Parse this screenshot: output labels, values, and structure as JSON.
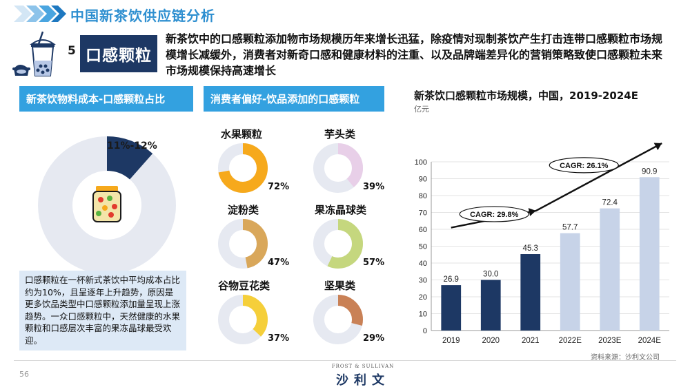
{
  "header": {
    "title": "中国新茶饮供应链分析"
  },
  "section": {
    "number": "5",
    "title": "口感颗粒",
    "description": "新茶饮中的口感颗粒添加物市场规模历年来增长迅猛，除疫情对现制茶饮产生打击连带口感颗粒市场规模增长减缓外，消费者对新奇口感和健康材料的注重、以及品牌端差异化的营销策略致使口感颗粒未来市场规模保持高速增长"
  },
  "panel_left": {
    "header": "新茶饮物料成本-口感颗粒占比",
    "share_label": "11%-12%",
    "share_fraction": 0.115,
    "note": "口感颗粒在一杯新式茶饮中平均成本占比约为10%，且呈逐年上升趋势，原因是更多饮品类型中口感颗粒添加量呈现上涨趋势。一众口感颗粒中，天然健康的水果颗粒和口感层次丰富的果冻晶球最受欢迎。"
  },
  "panel_middle": {
    "header": "消费者偏好-饮品添加的口感颗粒",
    "items": [
      {
        "name": "水果颗粒",
        "pct_label": "72%",
        "value": 0.72,
        "color": "#f6a91c"
      },
      {
        "name": "芋头类",
        "pct_label": "39%",
        "value": 0.39,
        "color": "#e8cfe8"
      },
      {
        "name": "淀粉类",
        "pct_label": "47%",
        "value": 0.47,
        "color": "#d9a75a"
      },
      {
        "name": "果冻晶球类",
        "pct_label": "57%",
        "value": 0.57,
        "color": "#c5d77e"
      },
      {
        "name": "谷物豆花类",
        "pct_label": "37%",
        "value": 0.37,
        "color": "#f5cf3a"
      },
      {
        "name": "坚果类",
        "pct_label": "29%",
        "value": 0.29,
        "color": "#c98156"
      }
    ]
  },
  "chart_data": {
    "type": "bar",
    "title": "新茶饮口感颗粒市场规模，中国，2019-2024E",
    "unit": "亿元",
    "categories": [
      "2019",
      "2020",
      "2021",
      "2022E",
      "2023E",
      "2024E"
    ],
    "values": [
      26.9,
      30.0,
      45.3,
      57.7,
      72.4,
      90.9
    ],
    "value_labels": [
      "26.9",
      "30.0",
      "45.3",
      "57.7",
      "72.4",
      "90.9"
    ],
    "ylim": [
      0,
      100
    ],
    "y_ticks": [
      "0",
      "10",
      "20",
      "30",
      "40",
      "50",
      "60",
      "70",
      "80",
      "90",
      "100"
    ],
    "grid": true,
    "colors": {
      "actual": "#1d3864",
      "forecast": "#c7d3e8"
    },
    "annotations": [
      {
        "text": "CAGR: 29.8%"
      },
      {
        "text": "CAGR: 26.1%"
      }
    ]
  },
  "footer": {
    "source": "资料来源：沙利文公司",
    "page": "56",
    "logo_en": "FROST & SULLIVAN",
    "logo_cn": "沙利文"
  },
  "colors": {
    "accent": "#33a1e0",
    "navy": "#1d3864",
    "donut_track": "#e6e9f1"
  }
}
